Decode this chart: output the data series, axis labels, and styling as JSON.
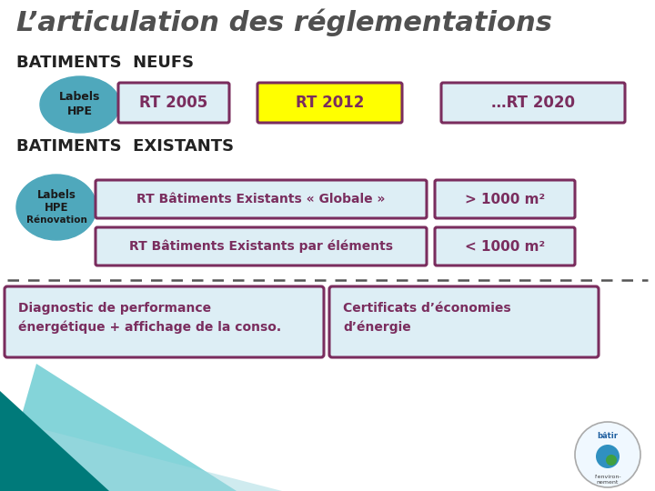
{
  "title": "L’articulation des réglementations",
  "bg_color": "#ffffff",
  "title_color": "#505050",
  "section1_label": "BATIMENTS  NEUFS",
  "section2_label": "BATIMENTS  EXISTANTS",
  "circle_color": "#4fa8bc",
  "circle_text1": "Labels",
  "circle_text2": "HPE",
  "circle2_text1": "Labels",
  "circle2_text2": "HPE",
  "circle2_text3": "Rénovation",
  "box_border_color": "#7a2d5e",
  "box_fill_light": "#ddeef5",
  "box_fill_rt2005": "#ddeef5",
  "box_fill_rt2012": "#ffff00",
  "box_fill_rt2020": "#ddeef5",
  "rt2005_text": "RT 2005",
  "rt2012_text": "RT 2012",
  "rt2020_text": "…RT 2020",
  "globale_text": "RT Bâtiments Existants « Globale »",
  "elements_text": "RT Bâtiments Existants par éléments",
  "m1000_text": "> 1000 m²",
  "m1000less_text": "< 1000 m²",
  "diag_text": "Diagnostic de performance\nénergétique + affichage de la conso.",
  "cert_text": "Certificats d’économies\nd’énergie",
  "dashed_color": "#555555",
  "box_text_color": "#7a2d5e",
  "teal_color": "#2ab0b8",
  "dark_teal": "#007a80"
}
